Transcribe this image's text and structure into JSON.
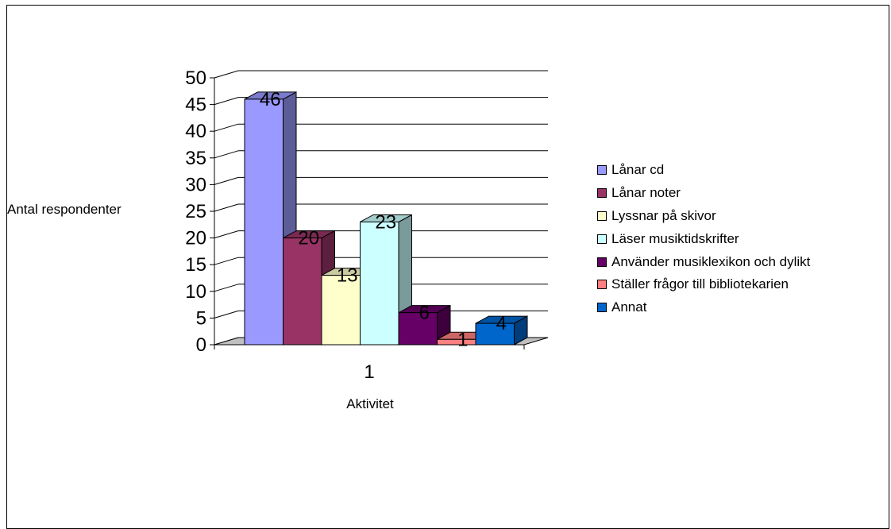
{
  "chart_data": {
    "type": "bar",
    "categories": [
      "1"
    ],
    "series": [
      {
        "name": "Lånar cd",
        "values": [
          46
        ],
        "color": "#9999FF"
      },
      {
        "name": "Lånar noter",
        "values": [
          20
        ],
        "color": "#993366"
      },
      {
        "name": "Lyssnar på skivor",
        "values": [
          13
        ],
        "color": "#FFFFCC"
      },
      {
        "name": "Läser musiktidskrifter",
        "values": [
          23
        ],
        "color": "#CCFFFF"
      },
      {
        "name": "Använder musiklexikon och dylikt",
        "values": [
          6
        ],
        "color": "#660066"
      },
      {
        "name": "Ställer frågor till bibliotekarien",
        "values": [
          1
        ],
        "color": "#FF8080"
      },
      {
        "name": "Annat",
        "values": [
          4
        ],
        "color": "#0066CC"
      }
    ],
    "title": "",
    "xlabel": "Aktivitet",
    "ylabel": "Antal respondenter",
    "ylim": [
      0,
      50
    ],
    "yticks": [
      "0",
      "5",
      "10",
      "15",
      "20",
      "25",
      "30",
      "35",
      "40",
      "45",
      "50"
    ],
    "grid": true,
    "legend": "right",
    "style": "3d-clustered"
  }
}
